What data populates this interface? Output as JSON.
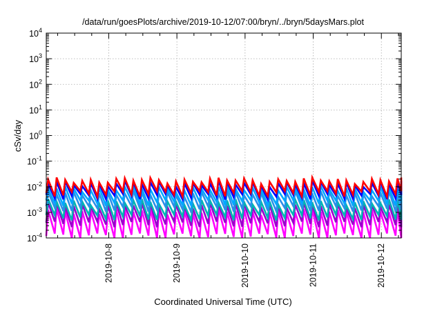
{
  "chart_data": {
    "type": "line",
    "title": "/data/run/goesPlots/archive/2019-10-12/07:00/bryn/../bryn/5daysMars.plot",
    "xlabel": "Coordinated Universal Time (UTC)",
    "ylabel": "cSv/day",
    "yscale": "log",
    "ylim": [
      0.0001,
      10000
    ],
    "xlim": [
      "2019-10-07 02:00",
      "2019-10-12 07:00"
    ],
    "grid": true,
    "y_ticks": [
      {
        "base": "10",
        "exp": "-4"
      },
      {
        "base": "10",
        "exp": "-3"
      },
      {
        "base": "10",
        "exp": "-2"
      },
      {
        "base": "10",
        "exp": "-1"
      },
      {
        "base": "10",
        "exp": "0"
      },
      {
        "base": "10",
        "exp": "1"
      },
      {
        "base": "10",
        "exp": "2"
      },
      {
        "base": "10",
        "exp": "3"
      },
      {
        "base": "10",
        "exp": "4"
      }
    ],
    "x_ticks": [
      "2019-10-8",
      "2019-10-9",
      "2019-10-10",
      "2019-10-11",
      "2019-10-12"
    ],
    "sawtooth_period_hours": 3,
    "series": [
      {
        "color": "#ff0000",
        "peak": 0.018,
        "trough": 0.0055
      },
      {
        "color": "#0000ff",
        "peak": 0.0135,
        "trough": 0.0042
      },
      {
        "color": "#00a8ff",
        "peak": 0.0085,
        "trough": 0.0024
      },
      {
        "color": "#2b8fe8",
        "peak": 0.0055,
        "trough": 0.0014
      },
      {
        "color": "#00b4b4",
        "peak": 0.0026,
        "trough": 0.00065
      },
      {
        "color": "#9a00cc",
        "peak": 0.0019,
        "trough": 0.00035
      },
      {
        "color": "#ff00ff",
        "peak": 0.0011,
        "trough": 0.00012
      }
    ]
  }
}
